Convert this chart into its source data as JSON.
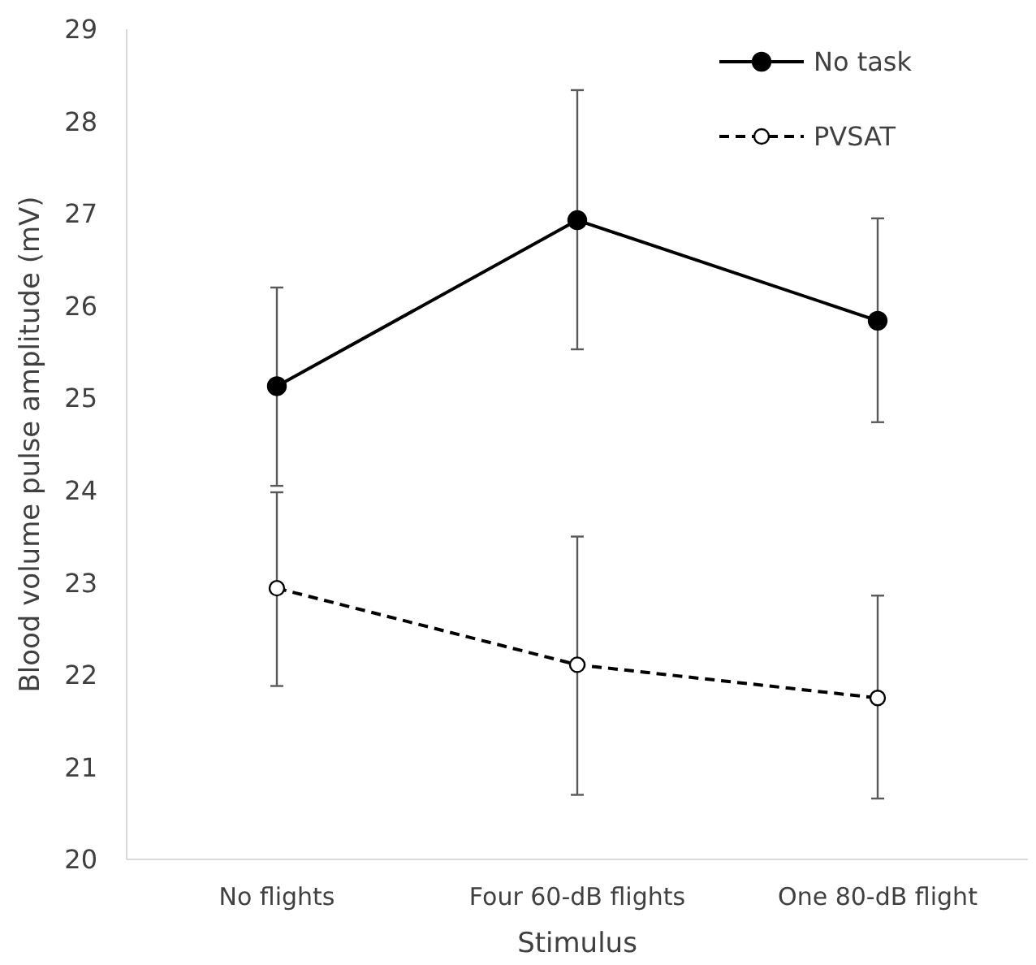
{
  "chart_data": {
    "type": "line",
    "xlabel": "Stimulus",
    "ylabel": "Blood volume pulse amplitude (mV)",
    "categories": [
      "No flights",
      "Four 60-dB flights",
      "One 80-dB flight"
    ],
    "ylim": [
      20,
      29
    ],
    "yticks": [
      20,
      21,
      22,
      23,
      24,
      25,
      26,
      27,
      28,
      29
    ],
    "grid": false,
    "legend": "top right",
    "series": [
      {
        "name": "No task",
        "color": "#000000",
        "values": [
          25.13,
          26.93,
          25.84
        ],
        "errors": [
          [
            24.05,
            26.2
          ],
          [
            25.53,
            28.34
          ],
          [
            24.74,
            26.95
          ]
        ],
        "marker": "circle",
        "line_style": "solid"
      },
      {
        "name": "PVSAT",
        "color": "#000000",
        "values": [
          22.94,
          22.11,
          21.75
        ],
        "errors": [
          [
            21.88,
            23.98
          ],
          [
            20.7,
            23.5
          ],
          [
            20.66,
            22.86
          ]
        ],
        "marker": "circle",
        "line_style": "dashed"
      }
    ]
  }
}
